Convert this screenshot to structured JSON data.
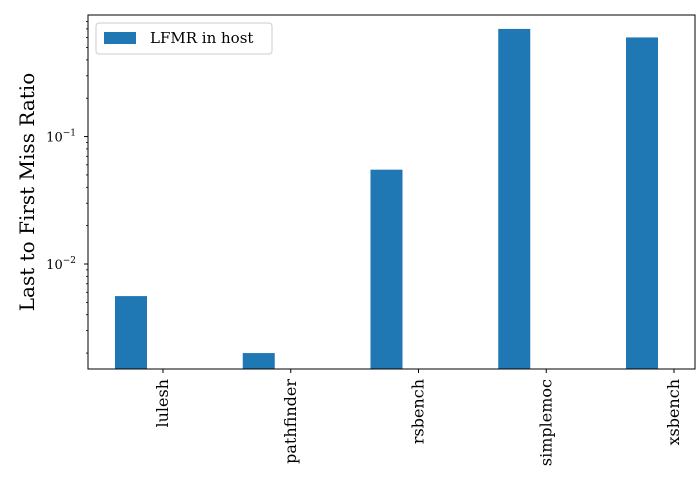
{
  "chart_data": {
    "type": "bar",
    "categories": [
      "lulesh",
      "pathfinder",
      "rsbench",
      "simplemoc",
      "xsbench"
    ],
    "series": [
      {
        "name": "LFMR in host",
        "color": "#1f77b4",
        "values": [
          0.0056,
          0.002,
          0.055,
          0.7,
          0.6
        ]
      }
    ],
    "ylabel": "Last to First Miss Ratio",
    "xlabel": "",
    "yscale": "log",
    "ylim": [
      0.0015,
      0.9
    ],
    "yticks": [
      {
        "value": 0.01,
        "base": "10",
        "exp": "−2"
      },
      {
        "value": 0.1,
        "base": "10",
        "exp": "−1"
      }
    ],
    "legend": {
      "position": "top-left"
    },
    "grid": false
  }
}
